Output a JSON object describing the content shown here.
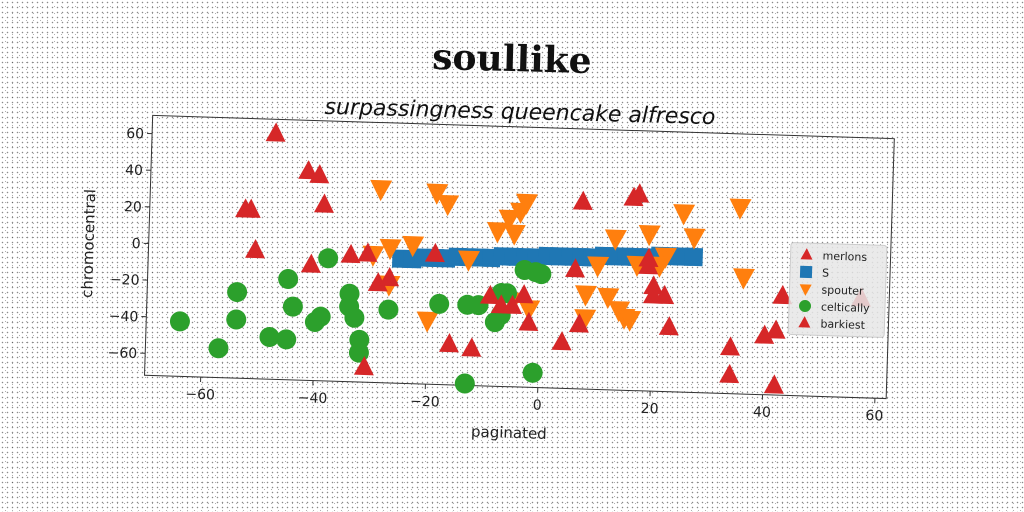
{
  "chart_data": {
    "type": "scatter",
    "title": "soullike",
    "subtitle": "surpassingness queencake alfresco",
    "xlabel": "paginated",
    "ylabel": "chromocentral",
    "xlim": [
      -70,
      62
    ],
    "ylim": [
      -72,
      70
    ],
    "xticks": [
      -60,
      -40,
      -20,
      0,
      20,
      40,
      60
    ],
    "yticks": [
      -60,
      -40,
      -20,
      0,
      20,
      40,
      60
    ],
    "grid": false,
    "legend_position": "center-right",
    "series": [
      {
        "name": "merlons",
        "marker": "triangle-up",
        "color": "#d62728",
        "points": [
          [
            57,
            -18
          ]
        ]
      },
      {
        "name": "S",
        "marker": "square",
        "color": "#1f77b4",
        "points": [
          [
            -25,
            -4
          ],
          [
            -23,
            -4
          ],
          [
            -21,
            -3
          ],
          [
            -19,
            -3
          ],
          [
            -17,
            -3
          ],
          [
            -15,
            -2
          ],
          [
            -13,
            -2
          ],
          [
            -11,
            -2
          ],
          [
            -9,
            -2
          ],
          [
            -7,
            -1
          ],
          [
            -5,
            -1
          ],
          [
            -3,
            -1
          ],
          [
            -1,
            -1
          ],
          [
            1,
            0
          ],
          [
            3,
            0
          ],
          [
            5,
            0
          ],
          [
            7,
            0
          ],
          [
            9,
            0
          ],
          [
            11,
            1
          ],
          [
            13,
            1
          ],
          [
            15,
            1
          ],
          [
            17,
            1
          ],
          [
            19,
            1
          ],
          [
            21,
            2
          ],
          [
            23,
            2
          ],
          [
            25,
            2
          ],
          [
            27,
            2
          ]
        ]
      },
      {
        "name": "spouter",
        "marker": "triangle-down",
        "color": "#ff7f0e",
        "points": [
          [
            -29,
            34
          ],
          [
            -27,
            2
          ],
          [
            -30,
            -2
          ],
          [
            -23,
            4
          ],
          [
            -19,
            33
          ],
          [
            -17,
            27
          ],
          [
            -13,
            -3
          ],
          [
            -8,
            13
          ],
          [
            -6,
            20
          ],
          [
            -5,
            12
          ],
          [
            -4,
            24
          ],
          [
            -3,
            29
          ],
          [
            -5,
            -25
          ],
          [
            -2,
            -29
          ],
          [
            -27,
            -18
          ],
          [
            -20,
            -37
          ],
          [
            10,
            -4
          ],
          [
            8,
            -20
          ],
          [
            12,
            -21
          ],
          [
            14,
            -28
          ],
          [
            13,
            11
          ],
          [
            15,
            -32
          ],
          [
            19,
            14
          ],
          [
            22,
            2
          ],
          [
            25,
            26
          ],
          [
            27,
            13
          ],
          [
            16,
            -33
          ],
          [
            35,
            30
          ],
          [
            36,
            -8
          ],
          [
            8,
            -33
          ],
          [
            17,
            -3
          ],
          [
            21,
            -3
          ]
        ]
      },
      {
        "name": "celtically",
        "marker": "circle",
        "color": "#2ca02c",
        "points": [
          [
            -64,
            -42
          ],
          [
            -57,
            -56
          ],
          [
            -54,
            -40
          ],
          [
            -54,
            -25
          ],
          [
            -48,
            -49
          ],
          [
            -45,
            -50
          ],
          [
            -45,
            -17
          ],
          [
            -44,
            -32
          ],
          [
            -40,
            -40
          ],
          [
            -39,
            -37
          ],
          [
            -38,
            -5
          ],
          [
            -34,
            -24
          ],
          [
            -34,
            -31
          ],
          [
            -33,
            -37
          ],
          [
            -32,
            -49
          ],
          [
            -32,
            -56
          ],
          [
            -27,
            -32
          ],
          [
            -18,
            -28
          ],
          [
            -13,
            -28
          ],
          [
            -11,
            -28
          ],
          [
            -8,
            -37
          ],
          [
            -7,
            -21
          ],
          [
            -7,
            -33
          ],
          [
            -6,
            -21
          ],
          [
            -3,
            -8
          ],
          [
            -1,
            -9
          ],
          [
            -13,
            -71
          ],
          [
            -1,
            -64
          ],
          [
            0,
            -10
          ]
        ]
      },
      {
        "name": "barkiest",
        "marker": "triangle-up",
        "color": "#d62728",
        "points": [
          [
            -48,
            62
          ],
          [
            -42,
            42
          ],
          [
            -40,
            40
          ],
          [
            -39,
            24
          ],
          [
            -52,
            20
          ],
          [
            -53,
            20
          ],
          [
            -51,
            -2
          ],
          [
            -41,
            -9
          ],
          [
            -34,
            -3
          ],
          [
            -31,
            -2
          ],
          [
            -29,
            -18
          ],
          [
            -27,
            -15
          ],
          [
            -31,
            -64
          ],
          [
            -19,
            -1
          ],
          [
            -16,
            -50
          ],
          [
            -12,
            -52
          ],
          [
            -9,
            -23
          ],
          [
            -7,
            -28
          ],
          [
            -3,
            -22
          ],
          [
            -5,
            -28
          ],
          [
            -2,
            -37
          ],
          [
            4,
            -47
          ],
          [
            6,
            -7
          ],
          [
            7,
            -37
          ],
          [
            7,
            30
          ],
          [
            16,
            33
          ],
          [
            17,
            35
          ],
          [
            19,
            0
          ],
          [
            19,
            -4
          ],
          [
            20,
            -15
          ],
          [
            20,
            -20
          ],
          [
            22,
            -20
          ],
          [
            23,
            -37
          ],
          [
            34,
            -47
          ],
          [
            34,
            -62
          ],
          [
            40,
            -40
          ],
          [
            42,
            -37
          ],
          [
            42,
            -67
          ],
          [
            43,
            -18
          ]
        ]
      }
    ]
  }
}
